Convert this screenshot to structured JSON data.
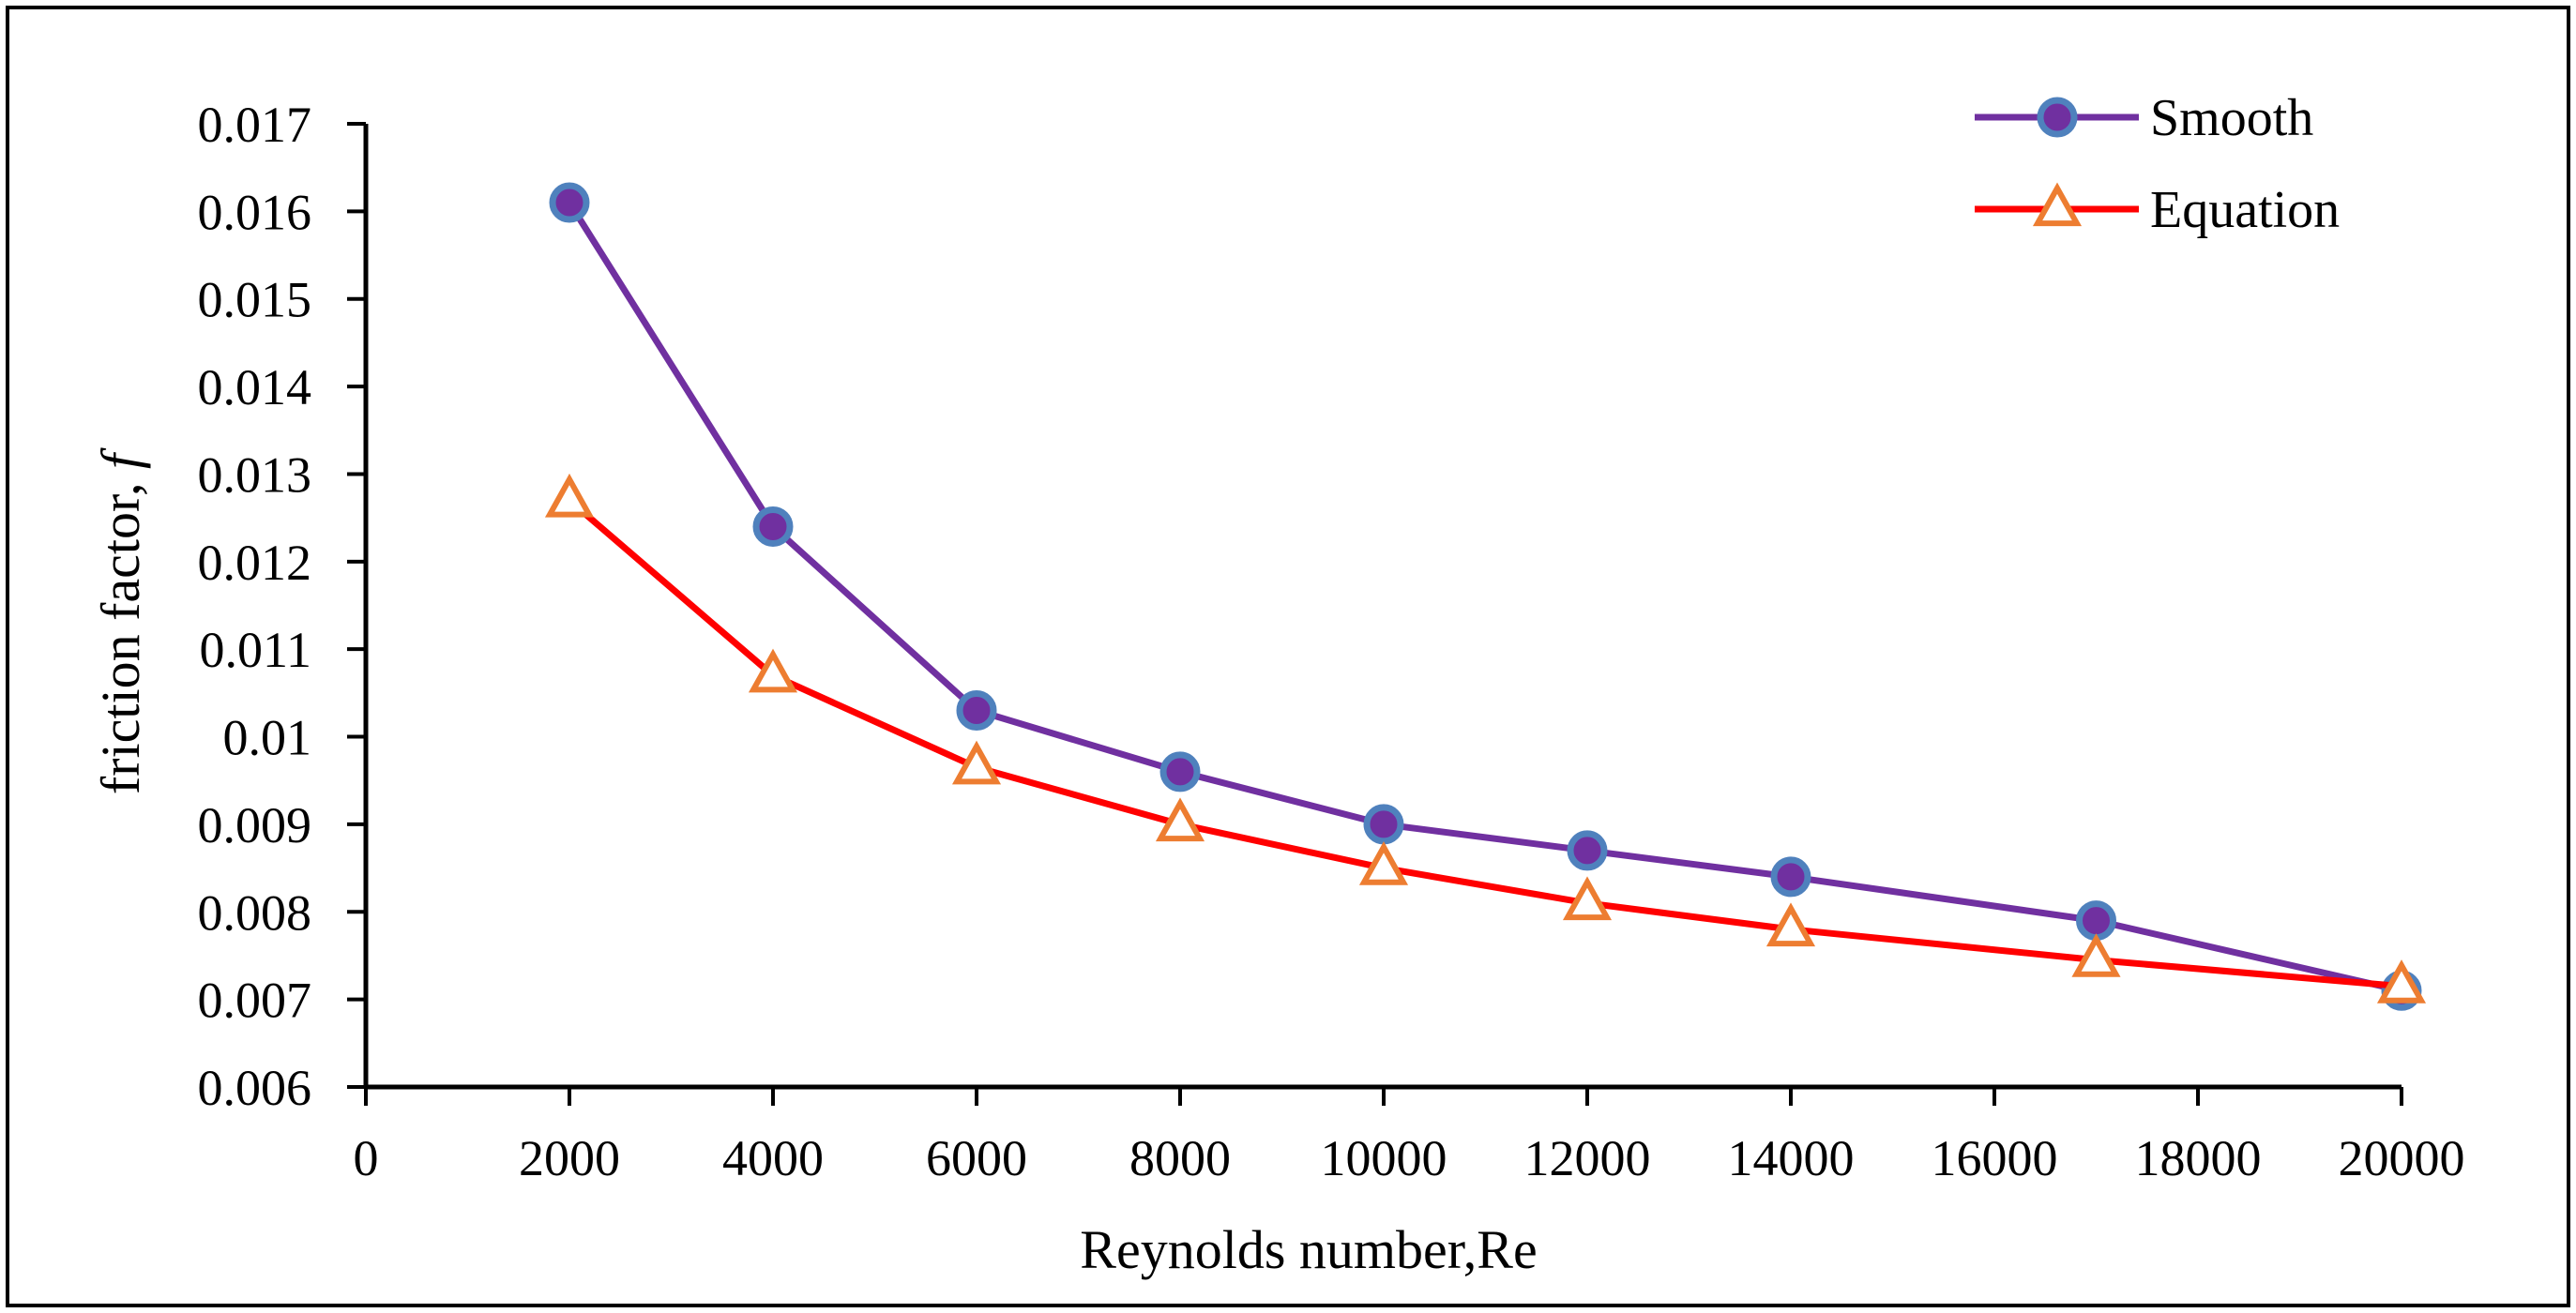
{
  "chart_data": {
    "type": "line",
    "title": "",
    "xlabel": "Reynolds number,Re",
    "ylabel_main": "friction factor, ",
    "ylabel_symbol": "f",
    "xlim": [
      0,
      20000
    ],
    "ylim": [
      0.006,
      0.017
    ],
    "x_ticks": [
      0,
      2000,
      4000,
      6000,
      8000,
      10000,
      12000,
      14000,
      16000,
      18000,
      20000
    ],
    "x_tick_labels": [
      "0",
      "2000",
      "4000",
      "6000",
      "8000",
      "10000",
      "12000",
      "14000",
      "16000",
      "18000",
      "20000"
    ],
    "y_ticks": [
      0.006,
      0.007,
      0.008,
      0.009,
      0.01,
      0.011,
      0.012,
      0.013,
      0.014,
      0.015,
      0.016,
      0.017
    ],
    "y_tick_labels": [
      "0.006",
      "0.007",
      "0.008",
      "0.009",
      "0.01",
      "0.011",
      "0.012",
      "0.013",
      "0.014",
      "0.015",
      "0.016",
      "0.017"
    ],
    "grid": false,
    "legend_position": "top-right",
    "series": [
      {
        "name": "Smooth",
        "color": "#7030A0",
        "marker": "circle",
        "marker_fill": "#7030A0",
        "marker_edge": "#4F81BD",
        "x": [
          2000,
          4000,
          6000,
          8000,
          10000,
          12000,
          14000,
          17000,
          20000
        ],
        "values": [
          0.0161,
          0.0124,
          0.0103,
          0.0096,
          0.009,
          0.0087,
          0.0084,
          0.0079,
          0.0071
        ]
      },
      {
        "name": "Equation",
        "color": "#FF0000",
        "marker": "triangle",
        "marker_fill": "#FFFFFF",
        "marker_edge": "#ED7D31",
        "x": [
          2000,
          4000,
          6000,
          8000,
          10000,
          12000,
          14000,
          17000,
          20000
        ],
        "values": [
          0.0127,
          0.0107,
          0.00965,
          0.009,
          0.0085,
          0.0081,
          0.0078,
          0.00745,
          0.00715
        ]
      }
    ]
  }
}
